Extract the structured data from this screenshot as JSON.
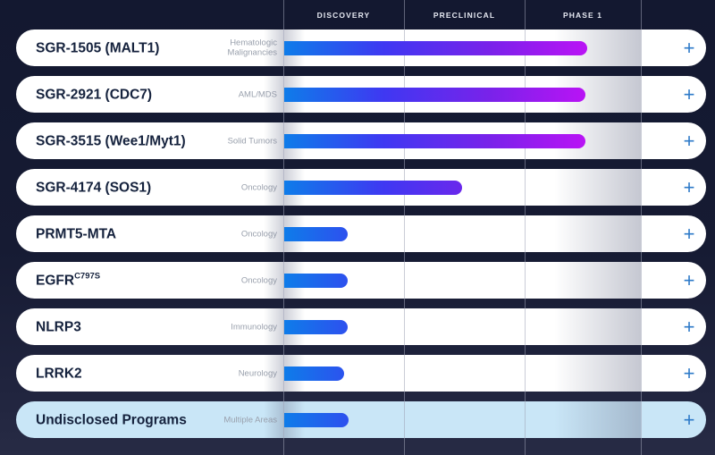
{
  "header": {
    "columns": [
      "DISCOVERY",
      "PRECLINICAL",
      "PHASE 1"
    ]
  },
  "icons": {
    "plus": "+"
  },
  "colors": {
    "background_dark": "#161b33",
    "card": "#ffffff",
    "card_highlight": "#c9e6f7",
    "program_name": "#15223d",
    "indication_text": "#9aa1ad",
    "header_text": "#e6e9f2",
    "plus_icon": "#2d7ac8",
    "bar_gradient_start": "#0e7ce9",
    "bar_gradient_mid": "#7a22ea",
    "bar_gradient_end": "#cb0ff8",
    "column_divider": "#9ea2b6"
  },
  "rows": [
    {
      "name": "SGR-1505 (MALT1)",
      "name_sup": "",
      "indication": "Hematologic Malignancies",
      "stage": "Phase 1",
      "progress_pct": 84.8,
      "highlighted": false
    },
    {
      "name": "SGR-2921 (CDC7)",
      "name_sup": "",
      "indication": "AML/MDS",
      "stage": "Phase 1",
      "progress_pct": 84.3,
      "highlighted": false
    },
    {
      "name": "SGR-3515 (Wee1/Myt1)",
      "name_sup": "",
      "indication": "Solid Tumors",
      "stage": "Phase 1",
      "progress_pct": 84.3,
      "highlighted": false
    },
    {
      "name": "SGR-4174 (SOS1)",
      "name_sup": "",
      "indication": "Oncology",
      "stage": "Preclinical",
      "progress_pct": 49.8,
      "highlighted": false
    },
    {
      "name": "PRMT5-MTA",
      "name_sup": "",
      "indication": "Oncology",
      "stage": "Discovery",
      "progress_pct": 17.8,
      "highlighted": false
    },
    {
      "name": "EGFR",
      "name_sup": "C797S",
      "indication": "Oncology",
      "stage": "Discovery",
      "progress_pct": 17.8,
      "highlighted": false
    },
    {
      "name": "NLRP3",
      "name_sup": "",
      "indication": "Immunology",
      "stage": "Discovery",
      "progress_pct": 17.8,
      "highlighted": false
    },
    {
      "name": "LRRK2",
      "name_sup": "",
      "indication": "Neurology",
      "stage": "Discovery",
      "progress_pct": 16.8,
      "highlighted": false
    },
    {
      "name": "Undisclosed Programs",
      "name_sup": "",
      "indication": "Multiple Areas",
      "stage": "Discovery",
      "progress_pct": 18.0,
      "highlighted": true
    }
  ],
  "chart_data": {
    "type": "bar",
    "title": "Drug development pipeline by phase",
    "phases": [
      "DISCOVERY",
      "PRECLINICAL",
      "PHASE 1"
    ],
    "categories": [
      "SGR-1505 (MALT1)",
      "SGR-2921 (CDC7)",
      "SGR-3515 (Wee1/Myt1)",
      "SGR-4174 (SOS1)",
      "PRMT5-MTA",
      "EGFR C797S",
      "NLRP3",
      "LRRK2",
      "Undisclosed Programs"
    ],
    "indications": [
      "Hematologic Malignancies",
      "AML/MDS",
      "Solid Tumors",
      "Oncology",
      "Oncology",
      "Oncology",
      "Immunology",
      "Neurology",
      "Multiple Areas"
    ],
    "values": [
      84.8,
      84.3,
      84.3,
      49.8,
      17.8,
      17.8,
      17.8,
      16.8,
      18.0
    ],
    "value_unit": "percent of track from start of Discovery to end of Phase 1",
    "stage_reached": [
      "Phase 1",
      "Phase 1",
      "Phase 1",
      "Preclinical",
      "Discovery",
      "Discovery",
      "Discovery",
      "Discovery",
      "Discovery"
    ],
    "xlim": [
      0,
      100
    ],
    "grid": "column dividers only",
    "legend": "none",
    "bar_gradient": [
      "#0e7ce9",
      "#3f38f2",
      "#7a22ea",
      "#cb0ff8"
    ]
  }
}
